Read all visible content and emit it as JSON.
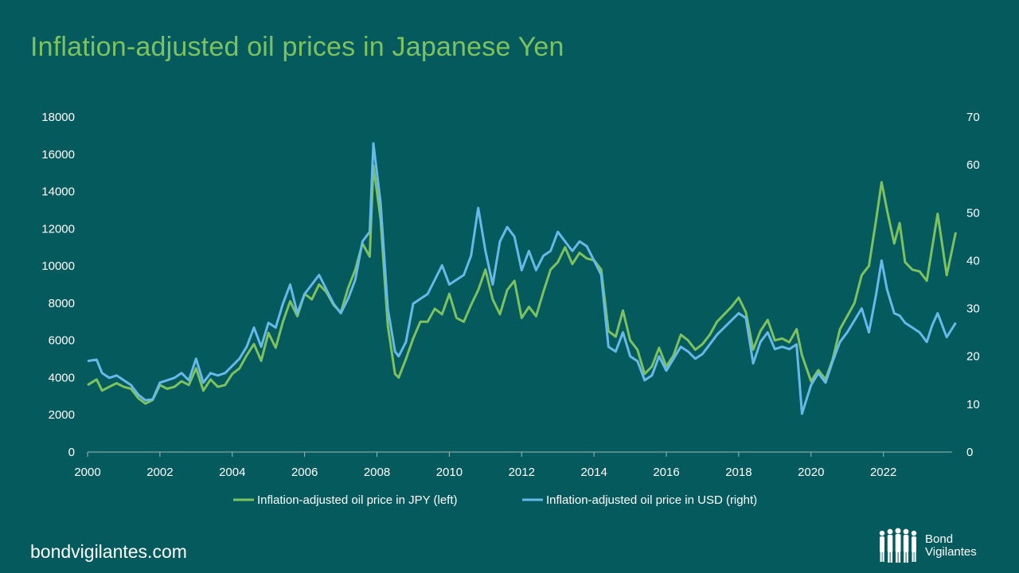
{
  "title": "Inflation-adjusted oil prices in Japanese Yen",
  "footer": "bondvigilantes.com",
  "logo": {
    "line1": "Bond",
    "line2": "Vigilantes"
  },
  "colors": {
    "background": "#055a5e",
    "jpy": "#7dc25f",
    "usd": "#66b9e8",
    "text": "#ffffff"
  },
  "chart_data": {
    "type": "line",
    "title": "",
    "xlabel": "",
    "ylabel_left": "",
    "ylabel_right": "",
    "x_ticks": [
      "2000",
      "2002",
      "2004",
      "2006",
      "2008",
      "2010",
      "2012",
      "2014",
      "2016",
      "2018",
      "2020",
      "2022"
    ],
    "xlim": [
      2000,
      2024
    ],
    "y_left_ticks": [
      "0",
      "2000",
      "4000",
      "6000",
      "8000",
      "10000",
      "12000",
      "14000",
      "16000",
      "18000"
    ],
    "y_left_lim": [
      0,
      18000
    ],
    "y_right_ticks": [
      "0",
      "10",
      "20",
      "30",
      "40",
      "50",
      "60",
      "70"
    ],
    "y_right_lim": [
      0,
      70
    ],
    "legend_position": "bottom",
    "grid": false,
    "series": [
      {
        "name": "Inflation-adjusted oil price in JPY (left)",
        "axis": "left",
        "color": "#7dc25f",
        "points": [
          [
            2000.0,
            3600
          ],
          [
            2000.25,
            3900
          ],
          [
            2000.4,
            3300
          ],
          [
            2000.6,
            3500
          ],
          [
            2000.8,
            3700
          ],
          [
            2001.0,
            3500
          ],
          [
            2001.2,
            3400
          ],
          [
            2001.4,
            2900
          ],
          [
            2001.6,
            2600
          ],
          [
            2001.8,
            2800
          ],
          [
            2002.0,
            3600
          ],
          [
            2002.2,
            3400
          ],
          [
            2002.4,
            3500
          ],
          [
            2002.6,
            3800
          ],
          [
            2002.8,
            3600
          ],
          [
            2003.0,
            4500
          ],
          [
            2003.2,
            3300
          ],
          [
            2003.4,
            3900
          ],
          [
            2003.6,
            3500
          ],
          [
            2003.8,
            3600
          ],
          [
            2004.0,
            4200
          ],
          [
            2004.2,
            4500
          ],
          [
            2004.4,
            5200
          ],
          [
            2004.6,
            5800
          ],
          [
            2004.8,
            4900
          ],
          [
            2005.0,
            6400
          ],
          [
            2005.2,
            5600
          ],
          [
            2005.4,
            7000
          ],
          [
            2005.6,
            8100
          ],
          [
            2005.8,
            7300
          ],
          [
            2006.0,
            8500
          ],
          [
            2006.2,
            8200
          ],
          [
            2006.4,
            9000
          ],
          [
            2006.6,
            8600
          ],
          [
            2006.8,
            7900
          ],
          [
            2007.0,
            7500
          ],
          [
            2007.2,
            8800
          ],
          [
            2007.4,
            9800
          ],
          [
            2007.6,
            11200
          ],
          [
            2007.8,
            10500
          ],
          [
            2007.9,
            15400
          ],
          [
            2008.1,
            12500
          ],
          [
            2008.3,
            6800
          ],
          [
            2008.5,
            4200
          ],
          [
            2008.6,
            4000
          ],
          [
            2008.8,
            5000
          ],
          [
            2009.0,
            6100
          ],
          [
            2009.2,
            7000
          ],
          [
            2009.4,
            7000
          ],
          [
            2009.6,
            7700
          ],
          [
            2009.8,
            7400
          ],
          [
            2010.0,
            8500
          ],
          [
            2010.2,
            7200
          ],
          [
            2010.4,
            7000
          ],
          [
            2010.6,
            7900
          ],
          [
            2010.8,
            8700
          ],
          [
            2011.0,
            9800
          ],
          [
            2011.2,
            8200
          ],
          [
            2011.4,
            7400
          ],
          [
            2011.6,
            8700
          ],
          [
            2011.8,
            9200
          ],
          [
            2012.0,
            7200
          ],
          [
            2012.2,
            7800
          ],
          [
            2012.4,
            7300
          ],
          [
            2012.6,
            8600
          ],
          [
            2012.8,
            9800
          ],
          [
            2013.0,
            10200
          ],
          [
            2013.2,
            11000
          ],
          [
            2013.4,
            10100
          ],
          [
            2013.6,
            10700
          ],
          [
            2013.8,
            10400
          ],
          [
            2014.0,
            10300
          ],
          [
            2014.2,
            9800
          ],
          [
            2014.4,
            6500
          ],
          [
            2014.6,
            6200
          ],
          [
            2014.8,
            7600
          ],
          [
            2015.0,
            6000
          ],
          [
            2015.2,
            5500
          ],
          [
            2015.4,
            4200
          ],
          [
            2015.6,
            4600
          ],
          [
            2015.8,
            5600
          ],
          [
            2016.0,
            4600
          ],
          [
            2016.2,
            5200
          ],
          [
            2016.4,
            6300
          ],
          [
            2016.6,
            6000
          ],
          [
            2016.8,
            5500
          ],
          [
            2017.0,
            5800
          ],
          [
            2017.2,
            6300
          ],
          [
            2017.4,
            7000
          ],
          [
            2017.6,
            7400
          ],
          [
            2017.8,
            7800
          ],
          [
            2018.0,
            8300
          ],
          [
            2018.2,
            7500
          ],
          [
            2018.4,
            5500
          ],
          [
            2018.6,
            6500
          ],
          [
            2018.8,
            7100
          ],
          [
            2019.0,
            6000
          ],
          [
            2019.2,
            6100
          ],
          [
            2019.4,
            5900
          ],
          [
            2019.6,
            6600
          ],
          [
            2019.75,
            5200
          ],
          [
            2020.0,
            3800
          ],
          [
            2020.2,
            4400
          ],
          [
            2020.4,
            3900
          ],
          [
            2020.6,
            5000
          ],
          [
            2020.8,
            6600
          ],
          [
            2021.0,
            7300
          ],
          [
            2021.2,
            8000
          ],
          [
            2021.4,
            9500
          ],
          [
            2021.6,
            10000
          ],
          [
            2021.8,
            12500
          ],
          [
            2021.95,
            14500
          ],
          [
            2022.1,
            13000
          ],
          [
            2022.3,
            11200
          ],
          [
            2022.45,
            12300
          ],
          [
            2022.6,
            10200
          ],
          [
            2022.8,
            9800
          ],
          [
            2023.0,
            9700
          ],
          [
            2023.2,
            9200
          ],
          [
            2023.35,
            11000
          ],
          [
            2023.5,
            12800
          ],
          [
            2023.75,
            9500
          ],
          [
            2024.0,
            11800
          ]
        ]
      },
      {
        "name": "Inflation-adjusted oil price in USD (right)",
        "axis": "right",
        "color": "#66b9e8",
        "points": [
          [
            2000.0,
            19
          ],
          [
            2000.25,
            19.3
          ],
          [
            2000.4,
            16.5
          ],
          [
            2000.6,
            15.5
          ],
          [
            2000.8,
            16
          ],
          [
            2001.0,
            15
          ],
          [
            2001.2,
            14
          ],
          [
            2001.4,
            12
          ],
          [
            2001.6,
            10.8
          ],
          [
            2001.8,
            11
          ],
          [
            2002.0,
            14.5
          ],
          [
            2002.2,
            15
          ],
          [
            2002.4,
            15.5
          ],
          [
            2002.6,
            16.5
          ],
          [
            2002.8,
            15
          ],
          [
            2003.0,
            19.5
          ],
          [
            2003.2,
            14.5
          ],
          [
            2003.4,
            16.5
          ],
          [
            2003.6,
            16
          ],
          [
            2003.8,
            16.5
          ],
          [
            2004.0,
            18
          ],
          [
            2004.2,
            19.5
          ],
          [
            2004.4,
            22
          ],
          [
            2004.6,
            26
          ],
          [
            2004.8,
            22
          ],
          [
            2005.0,
            27
          ],
          [
            2005.2,
            26
          ],
          [
            2005.4,
            31
          ],
          [
            2005.6,
            35
          ],
          [
            2005.8,
            29
          ],
          [
            2006.0,
            33
          ],
          [
            2006.2,
            35
          ],
          [
            2006.4,
            37
          ],
          [
            2006.6,
            34
          ],
          [
            2006.8,
            31
          ],
          [
            2007.0,
            29
          ],
          [
            2007.2,
            32
          ],
          [
            2007.4,
            36
          ],
          [
            2007.6,
            44
          ],
          [
            2007.8,
            46
          ],
          [
            2007.9,
            64.5
          ],
          [
            2008.1,
            52
          ],
          [
            2008.3,
            30
          ],
          [
            2008.5,
            21
          ],
          [
            2008.6,
            20
          ],
          [
            2008.8,
            23
          ],
          [
            2009.0,
            31
          ],
          [
            2009.2,
            32
          ],
          [
            2009.4,
            33
          ],
          [
            2009.6,
            36
          ],
          [
            2009.8,
            39
          ],
          [
            2010.0,
            35
          ],
          [
            2010.2,
            36
          ],
          [
            2010.4,
            37
          ],
          [
            2010.6,
            41
          ],
          [
            2010.8,
            51
          ],
          [
            2011.0,
            42
          ],
          [
            2011.2,
            35
          ],
          [
            2011.4,
            44
          ],
          [
            2011.6,
            47
          ],
          [
            2011.8,
            45
          ],
          [
            2012.0,
            38
          ],
          [
            2012.2,
            42
          ],
          [
            2012.4,
            38
          ],
          [
            2012.6,
            41
          ],
          [
            2012.8,
            42
          ],
          [
            2013.0,
            46
          ],
          [
            2013.2,
            44
          ],
          [
            2013.4,
            42
          ],
          [
            2013.6,
            44
          ],
          [
            2013.8,
            43
          ],
          [
            2014.0,
            40
          ],
          [
            2014.2,
            37
          ],
          [
            2014.4,
            22
          ],
          [
            2014.6,
            21
          ],
          [
            2014.8,
            25
          ],
          [
            2015.0,
            20
          ],
          [
            2015.2,
            19
          ],
          [
            2015.4,
            15
          ],
          [
            2015.6,
            16
          ],
          [
            2015.8,
            20
          ],
          [
            2016.0,
            17
          ],
          [
            2016.2,
            19.5
          ],
          [
            2016.4,
            22
          ],
          [
            2016.6,
            21
          ],
          [
            2016.8,
            19.5
          ],
          [
            2017.0,
            20.5
          ],
          [
            2017.2,
            22.5
          ],
          [
            2017.4,
            24.5
          ],
          [
            2017.6,
            26
          ],
          [
            2017.8,
            27.5
          ],
          [
            2018.0,
            29
          ],
          [
            2018.2,
            28
          ],
          [
            2018.4,
            18.5
          ],
          [
            2018.6,
            23
          ],
          [
            2018.8,
            25
          ],
          [
            2019.0,
            21.5
          ],
          [
            2019.2,
            22
          ],
          [
            2019.4,
            21.5
          ],
          [
            2019.6,
            22.5
          ],
          [
            2019.75,
            8
          ],
          [
            2020.0,
            14
          ],
          [
            2020.2,
            16.5
          ],
          [
            2020.4,
            14.5
          ],
          [
            2020.6,
            19
          ],
          [
            2020.8,
            23
          ],
          [
            2021.0,
            25
          ],
          [
            2021.2,
            27.5
          ],
          [
            2021.4,
            30
          ],
          [
            2021.6,
            25
          ],
          [
            2021.8,
            33
          ],
          [
            2021.95,
            40
          ],
          [
            2022.1,
            34
          ],
          [
            2022.3,
            29
          ],
          [
            2022.45,
            28.5
          ],
          [
            2022.6,
            27
          ],
          [
            2022.8,
            26
          ],
          [
            2023.0,
            25
          ],
          [
            2023.2,
            23
          ],
          [
            2023.35,
            26.5
          ],
          [
            2023.5,
            29
          ],
          [
            2023.75,
            24
          ],
          [
            2024.0,
            27
          ]
        ]
      }
    ]
  }
}
